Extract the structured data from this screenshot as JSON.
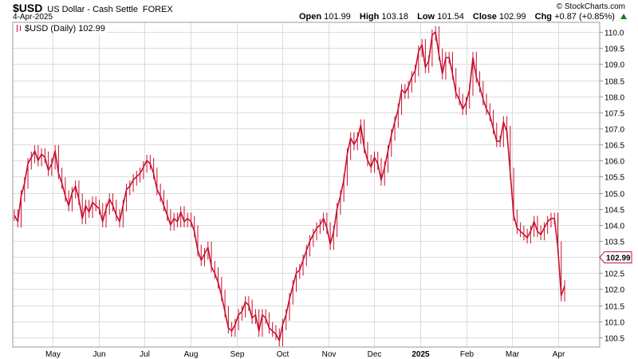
{
  "header": {
    "symbol": "$USD",
    "name": "US Dollar - Cash Settle",
    "exchange": "FOREX",
    "date": "4-Apr-2025",
    "credit": "© StockCharts.com",
    "open_label": "Open",
    "open_value": "101.99",
    "high_label": "High",
    "high_value": "103.18",
    "low_label": "Low",
    "low_value": "101.54",
    "close_label": "Close",
    "close_value": "102.99",
    "chg_label": "Chg",
    "chg_value": "+0.87 (+0.85%)"
  },
  "legend": {
    "text": "$USD (Daily) 102.99"
  },
  "colors": {
    "series": "#c8102e",
    "grid": "#dcdcdc",
    "frame": "#999999",
    "up": "#1a7a1a"
  },
  "chart_data": {
    "type": "line",
    "title": "$USD US Dollar - Cash Settle FOREX",
    "series": [
      {
        "name": "$USD (Daily)",
        "values": [
          104.3,
          104.1,
          104.9,
          105.3,
          105.9,
          106.1,
          106.3,
          106.0,
          106.2,
          106.1,
          105.7,
          105.9,
          106.3,
          105.6,
          105.3,
          104.9,
          104.6,
          105.0,
          105.2,
          104.8,
          104.2,
          104.6,
          104.4,
          104.7,
          104.6,
          104.5,
          104.1,
          104.5,
          104.8,
          104.6,
          104.3,
          104.1,
          104.6,
          105.1,
          105.2,
          105.4,
          105.5,
          105.6,
          105.8,
          106.0,
          105.9,
          105.6,
          105.1,
          104.9,
          104.6,
          104.3,
          104.0,
          104.2,
          104.1,
          104.4,
          104.1,
          104.2,
          104.1,
          103.8,
          103.2,
          102.9,
          103.1,
          103.3,
          102.7,
          102.5,
          102.2,
          101.8,
          101.3,
          100.8,
          100.7,
          100.9,
          101.2,
          101.3,
          101.6,
          101.5,
          101.1,
          101.2,
          100.7,
          101.2,
          101.1,
          100.8,
          100.7,
          100.6,
          100.4,
          100.9,
          101.2,
          101.7,
          102.1,
          102.5,
          102.6,
          102.9,
          103.2,
          103.5,
          103.7,
          103.9,
          104.0,
          104.2,
          103.9,
          103.4,
          103.8,
          104.5,
          104.9,
          105.4,
          106.2,
          106.7,
          106.5,
          106.7,
          107.1,
          106.4,
          106.0,
          105.8,
          106.1,
          105.9,
          105.4,
          105.8,
          106.3,
          106.8,
          107.2,
          107.6,
          108.2,
          108.1,
          108.3,
          108.6,
          108.8,
          109.4,
          109.6,
          108.9,
          109.1,
          109.9,
          110.0,
          109.3,
          108.7,
          109.2,
          109.2,
          108.7,
          108.1,
          107.9,
          107.6,
          107.8,
          108.2,
          109.2,
          108.6,
          108.3,
          107.9,
          107.6,
          107.4,
          107.0,
          106.6,
          106.6,
          107.2,
          106.9,
          105.6,
          104.3,
          103.9,
          103.8,
          103.7,
          103.6,
          103.8,
          104.1,
          103.8,
          103.7,
          103.9,
          104.1,
          104.2,
          104.2,
          103.3,
          101.8,
          102.1
        ]
      }
    ],
    "xaxis_months": [
      "May",
      "Jun",
      "Jul",
      "Aug",
      "Sep",
      "Oct",
      "Nov",
      "Dec",
      "2025",
      "Feb",
      "Mar",
      "Apr"
    ],
    "yticks": [
      100.5,
      101.0,
      101.5,
      102.0,
      102.5,
      103.0,
      103.5,
      104.0,
      104.5,
      105.0,
      105.5,
      106.0,
      106.5,
      107.0,
      107.5,
      108.0,
      108.5,
      109.0,
      109.5,
      110.0
    ],
    "ylim": [
      100.2,
      110.3
    ],
    "last_value_label": "102.99",
    "last_value": 102.99,
    "grid": true,
    "legend_position": "top-left"
  }
}
